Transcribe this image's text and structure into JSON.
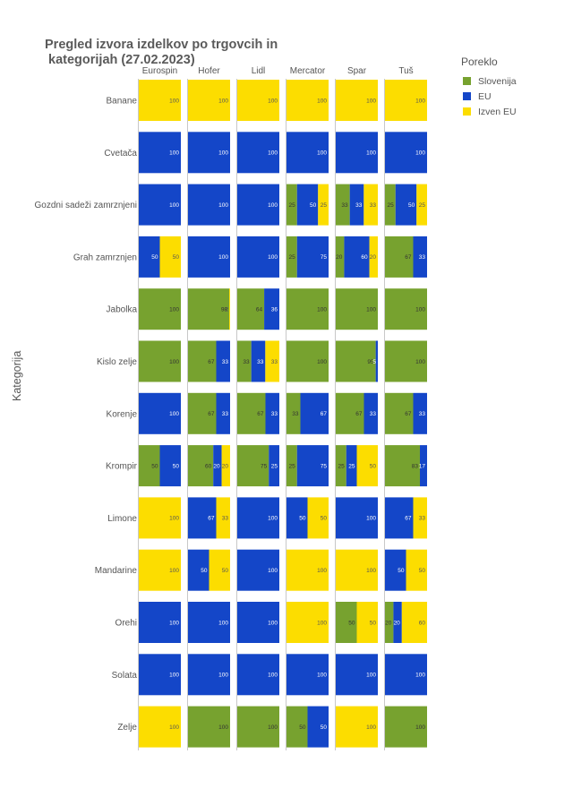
{
  "chart_data": {
    "type": "bar",
    "orientation": "horizontal-stacked-100",
    "title": "Pregled izvora izdelkov po trgovcih in kategorijah (27.02.2023)",
    "title_lines": [
      "Pregled izvora izdelkov po trgovcih in",
      " kategorijah (27.02.2023)"
    ],
    "ylabel": "Kategorija",
    "legend_title": "Poreklo",
    "legend_position": "right-top",
    "grid": false,
    "stores": [
      "Eurospin",
      "Hofer",
      "Lidl",
      "Mercator",
      "Spar",
      "Tuš"
    ],
    "categories": [
      "Banane",
      "Cvetača",
      "Gozdni sadeži zamrznjeni",
      "Grah zamrznjen",
      "Jabolka",
      "Kislo zelje",
      "Korenje",
      "Krompir",
      "Limone",
      "Mandarine",
      "Orehi",
      "Solata",
      "Zelje"
    ],
    "series": [
      {
        "name": "Slovenija",
        "color": "#77a22f"
      },
      {
        "name": "EU",
        "color": "#1446c8"
      },
      {
        "name": "Izven EU",
        "color": "#fcdd00"
      }
    ],
    "values": [
      [
        [
          0,
          0,
          100
        ],
        [
          0,
          0,
          100
        ],
        [
          0,
          0,
          100
        ],
        [
          0,
          0,
          100
        ],
        [
          0,
          0,
          100
        ],
        [
          0,
          0,
          100
        ]
      ],
      [
        [
          0,
          100,
          0
        ],
        [
          0,
          100,
          0
        ],
        [
          0,
          100,
          0
        ],
        [
          0,
          100,
          0
        ],
        [
          0,
          100,
          0
        ],
        [
          0,
          100,
          0
        ]
      ],
      [
        [
          0,
          100,
          0
        ],
        [
          0,
          100,
          0
        ],
        [
          0,
          100,
          0
        ],
        [
          25,
          50,
          25
        ],
        [
          33,
          33,
          33
        ],
        [
          25,
          50,
          25
        ]
      ],
      [
        [
          0,
          50,
          50
        ],
        [
          0,
          100,
          0
        ],
        [
          0,
          100,
          0
        ],
        [
          25,
          75,
          0
        ],
        [
          20,
          60,
          20
        ],
        [
          67,
          33,
          0
        ]
      ],
      [
        [
          100,
          0,
          0
        ],
        [
          98,
          0,
          2
        ],
        [
          64,
          36,
          0
        ],
        [
          100,
          0,
          0
        ],
        [
          100,
          0,
          0
        ],
        [
          100,
          0,
          0
        ]
      ],
      [
        [
          100,
          0,
          0
        ],
        [
          67,
          33,
          0
        ],
        [
          33,
          33,
          33
        ],
        [
          100,
          0,
          0
        ],
        [
          95,
          5,
          0
        ],
        [
          100,
          0,
          0
        ]
      ],
      [
        [
          0,
          100,
          0
        ],
        [
          67,
          33,
          0
        ],
        [
          67,
          33,
          0
        ],
        [
          33,
          67,
          0
        ],
        [
          67,
          33,
          0
        ],
        [
          67,
          33,
          0
        ]
      ],
      [
        [
          50,
          50,
          0
        ],
        [
          60,
          20,
          20
        ],
        [
          75,
          25,
          0
        ],
        [
          25,
          75,
          0
        ],
        [
          25,
          25,
          50
        ],
        [
          83,
          17,
          0
        ]
      ],
      [
        [
          0,
          0,
          100
        ],
        [
          0,
          67,
          33
        ],
        [
          0,
          100,
          0
        ],
        [
          0,
          50,
          50
        ],
        [
          0,
          100,
          0
        ],
        [
          0,
          67,
          33
        ]
      ],
      [
        [
          0,
          0,
          100
        ],
        [
          0,
          50,
          50
        ],
        [
          0,
          100,
          0
        ],
        [
          0,
          0,
          100
        ],
        [
          0,
          0,
          100
        ],
        [
          0,
          50,
          50
        ]
      ],
      [
        [
          0,
          100,
          0
        ],
        [
          0,
          100,
          0
        ],
        [
          0,
          100,
          0
        ],
        [
          0,
          0,
          100
        ],
        [
          50,
          0,
          50
        ],
        [
          20,
          20,
          60
        ]
      ],
      [
        [
          0,
          100,
          0
        ],
        [
          0,
          100,
          0
        ],
        [
          0,
          100,
          0
        ],
        [
          0,
          100,
          0
        ],
        [
          0,
          100,
          0
        ],
        [
          0,
          100,
          0
        ]
      ],
      [
        [
          0,
          0,
          100
        ],
        [
          100,
          0,
          0
        ],
        [
          100,
          0,
          0
        ],
        [
          50,
          50,
          0
        ],
        [
          0,
          0,
          100
        ],
        [
          100,
          0,
          0
        ]
      ]
    ],
    "xlim": [
      0,
      100
    ]
  }
}
